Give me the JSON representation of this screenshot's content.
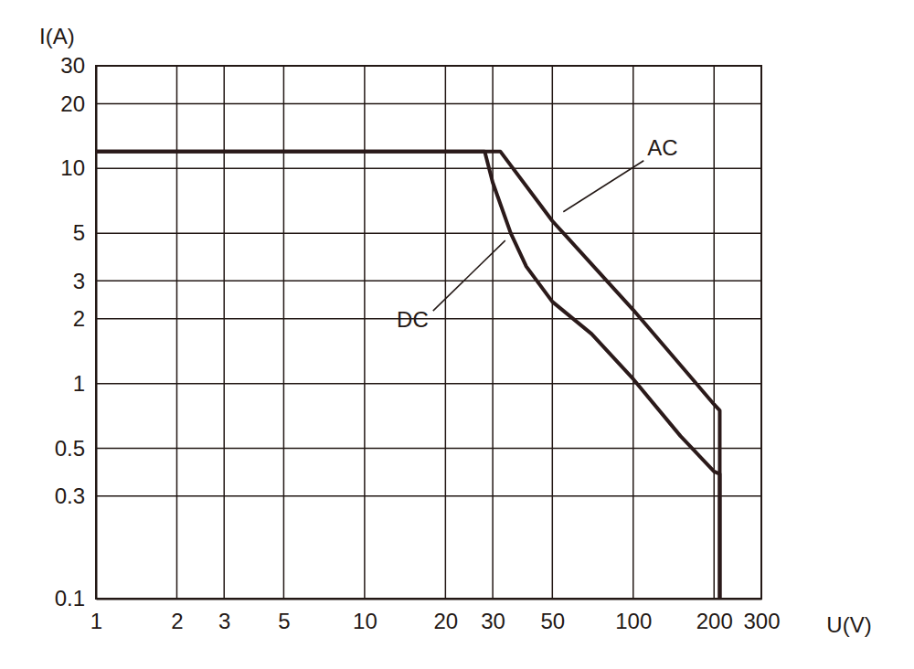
{
  "chart_data": {
    "type": "line",
    "x_label": "U(V)",
    "y_label": "I(A)",
    "log": true,
    "grid": true,
    "xlim": [
      1,
      300
    ],
    "xticks": [
      1,
      2,
      3,
      5,
      10,
      20,
      30,
      50,
      100,
      200,
      300
    ],
    "ylim": [
      0.1,
      30
    ],
    "yticks": [
      0.1,
      0.3,
      0.5,
      1,
      2,
      3,
      5,
      10,
      20,
      30
    ],
    "series": [
      {
        "name": "AC",
        "color": "#2b1a1a",
        "line_style": "solid",
        "x": [
          1,
          32,
          50,
          100,
          200,
          210,
          210
        ],
        "values": [
          12,
          12,
          5.7,
          2.2,
          0.8,
          0.75,
          0.1
        ]
      },
      {
        "name": "DC",
        "color": "#2b1a1a",
        "line_style": "solid",
        "x": [
          1,
          28,
          30,
          35,
          40,
          50,
          70,
          100,
          150,
          200,
          210,
          210
        ],
        "values": [
          12,
          12,
          8.6,
          5,
          3.5,
          2.4,
          1.7,
          1.05,
          0.57,
          0.39,
          0.38,
          0.1
        ]
      }
    ]
  }
}
